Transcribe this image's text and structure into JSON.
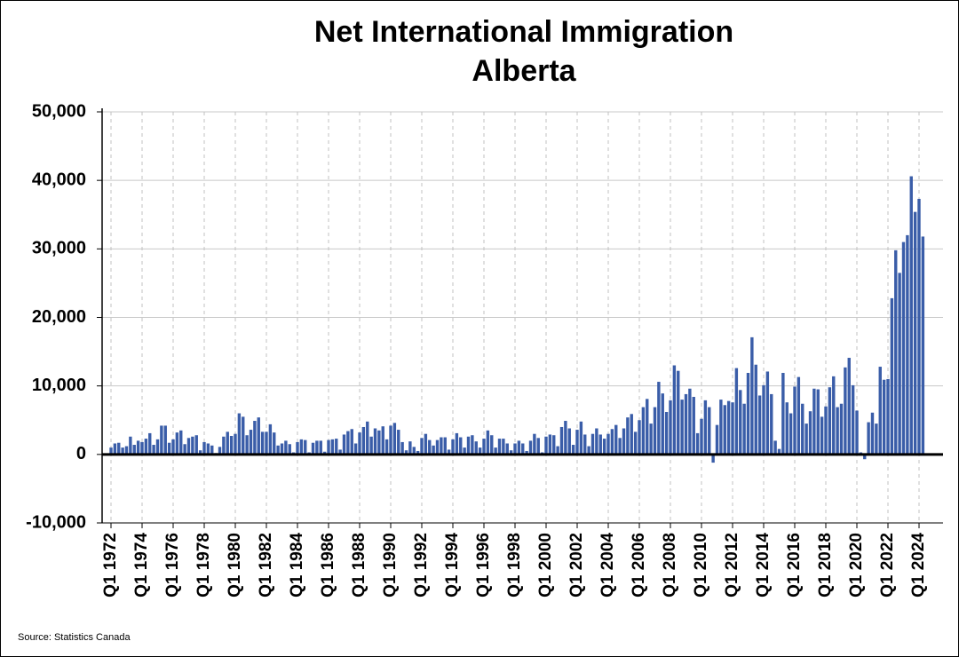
{
  "chart_data": {
    "type": "bar",
    "title": "Net International Immigration",
    "subtitle": "Alberta",
    "source": "Source: Statistics Canada",
    "color": "#3a5da8",
    "grid": true,
    "ylim": [
      -10000,
      50000
    ],
    "yticks": [
      {
        "value": -10000,
        "label": "-10,000"
      },
      0,
      {
        "value": 10000,
        "label": "10,000"
      },
      {
        "value": 20000,
        "label": "20,000"
      },
      {
        "value": 30000,
        "label": "30,000"
      },
      {
        "value": 40000,
        "label": "40,000"
      },
      {
        "value": 50000,
        "label": "50,000"
      }
    ],
    "categories": [
      "Q1 1972",
      null,
      null,
      null,
      null,
      null,
      null,
      null,
      "Q1 1974",
      null,
      null,
      null,
      null,
      null,
      null,
      null,
      "Q1 1976",
      null,
      null,
      null,
      null,
      null,
      null,
      null,
      "Q1 1978",
      null,
      null,
      null,
      null,
      null,
      null,
      null,
      "Q1 1980",
      null,
      null,
      null,
      null,
      null,
      null,
      null,
      "Q1 1982",
      null,
      null,
      null,
      null,
      null,
      null,
      null,
      "Q1 1984",
      null,
      null,
      null,
      null,
      null,
      null,
      null,
      "Q1 1986",
      null,
      null,
      null,
      null,
      null,
      null,
      null,
      "Q1 1988",
      null,
      null,
      null,
      null,
      null,
      null,
      null,
      "Q1 1990",
      null,
      null,
      null,
      null,
      null,
      null,
      null,
      "Q1 1992",
      null,
      null,
      null,
      null,
      null,
      null,
      null,
      "Q1 1994",
      null,
      null,
      null,
      null,
      null,
      null,
      null,
      "Q1 1996",
      null,
      null,
      null,
      null,
      null,
      null,
      null,
      "Q1 1998",
      null,
      null,
      null,
      null,
      null,
      null,
      null,
      "Q1 2000",
      null,
      null,
      null,
      null,
      null,
      null,
      null,
      "Q1 2002",
      null,
      null,
      null,
      null,
      null,
      null,
      null,
      "Q1 2004",
      null,
      null,
      null,
      null,
      null,
      null,
      null,
      "Q1 2006",
      null,
      null,
      null,
      null,
      null,
      null,
      null,
      "Q1 2008",
      null,
      null,
      null,
      null,
      null,
      null,
      null,
      "Q1 2010",
      null,
      null,
      null,
      null,
      null,
      null,
      null,
      "Q1 2012",
      null,
      null,
      null,
      null,
      null,
      null,
      null,
      "Q1 2014",
      null,
      null,
      null,
      null,
      null,
      null,
      null,
      "Q1 2016",
      null,
      null,
      null,
      null,
      null,
      null,
      null,
      "Q1 2018",
      null,
      null,
      null,
      null,
      null,
      null,
      null,
      "Q1 2020",
      null,
      null,
      null,
      null,
      null,
      null,
      null,
      "Q1 2022",
      null,
      null,
      null,
      null,
      null,
      null,
      null,
      "Q1 2024",
      null
    ],
    "values": [
      1000,
      1600,
      1700,
      1000,
      1200,
      2600,
      1400,
      2000,
      1800,
      2300,
      3100,
      1400,
      2200,
      4200,
      4200,
      1700,
      2200,
      3200,
      3500,
      1500,
      2400,
      2600,
      2800,
      600,
      1800,
      1600,
      1300,
      200,
      1100,
      2600,
      3300,
      2700,
      3000,
      6000,
      5500,
      2800,
      3600,
      4900,
      5400,
      3300,
      3300,
      4400,
      3200,
      1300,
      1600,
      2000,
      1500,
      300,
      1800,
      2200,
      2100,
      300,
      1700,
      2000,
      2000,
      400,
      2100,
      2200,
      2300,
      700,
      2900,
      3400,
      3700,
      1600,
      3200,
      4000,
      4800,
      2600,
      3800,
      3500,
      4100,
      2200,
      4200,
      4600,
      3600,
      1800,
      600,
      1900,
      1100,
      500,
      2400,
      3000,
      2100,
      1300,
      2100,
      2500,
      2500,
      700,
      2200,
      3100,
      2500,
      1000,
      2600,
      2800,
      1900,
      1000,
      2300,
      3500,
      2800,
      1000,
      2300,
      2300,
      1600,
      600,
      1600,
      2000,
      1600,
      500,
      2000,
      3000,
      2400,
      300,
      2600,
      2900,
      2800,
      1200,
      4000,
      4900,
      3800,
      1400,
      3600,
      4800,
      2900,
      1200,
      3000,
      3800,
      2900,
      2300,
      3000,
      3700,
      4300,
      2400,
      3800,
      5400,
      5900,
      3300,
      5000,
      6900,
      8100,
      4500,
      6900,
      10600,
      8900,
      6200,
      7900,
      13000,
      12200,
      8000,
      8800,
      9600,
      8400,
      3100,
      5200,
      7900,
      6900,
      -1200,
      4300,
      8000,
      7200,
      7800,
      7600,
      12600,
      9400,
      7400,
      11900,
      17100,
      13100,
      8600,
      10100,
      12100,
      8800,
      2000,
      800,
      11900,
      7600,
      6000,
      9900,
      11300,
      7400,
      4500,
      6300,
      9600,
      9500,
      5500,
      7000,
      9800,
      11400,
      6900,
      7400,
      12700,
      14100,
      10100,
      6400,
      300,
      -700,
      4700,
      6100,
      4500,
      12800,
      10900,
      11000,
      22800,
      29800,
      26500,
      31000,
      32000,
      40600,
      35400,
      37300,
      31800
    ]
  }
}
